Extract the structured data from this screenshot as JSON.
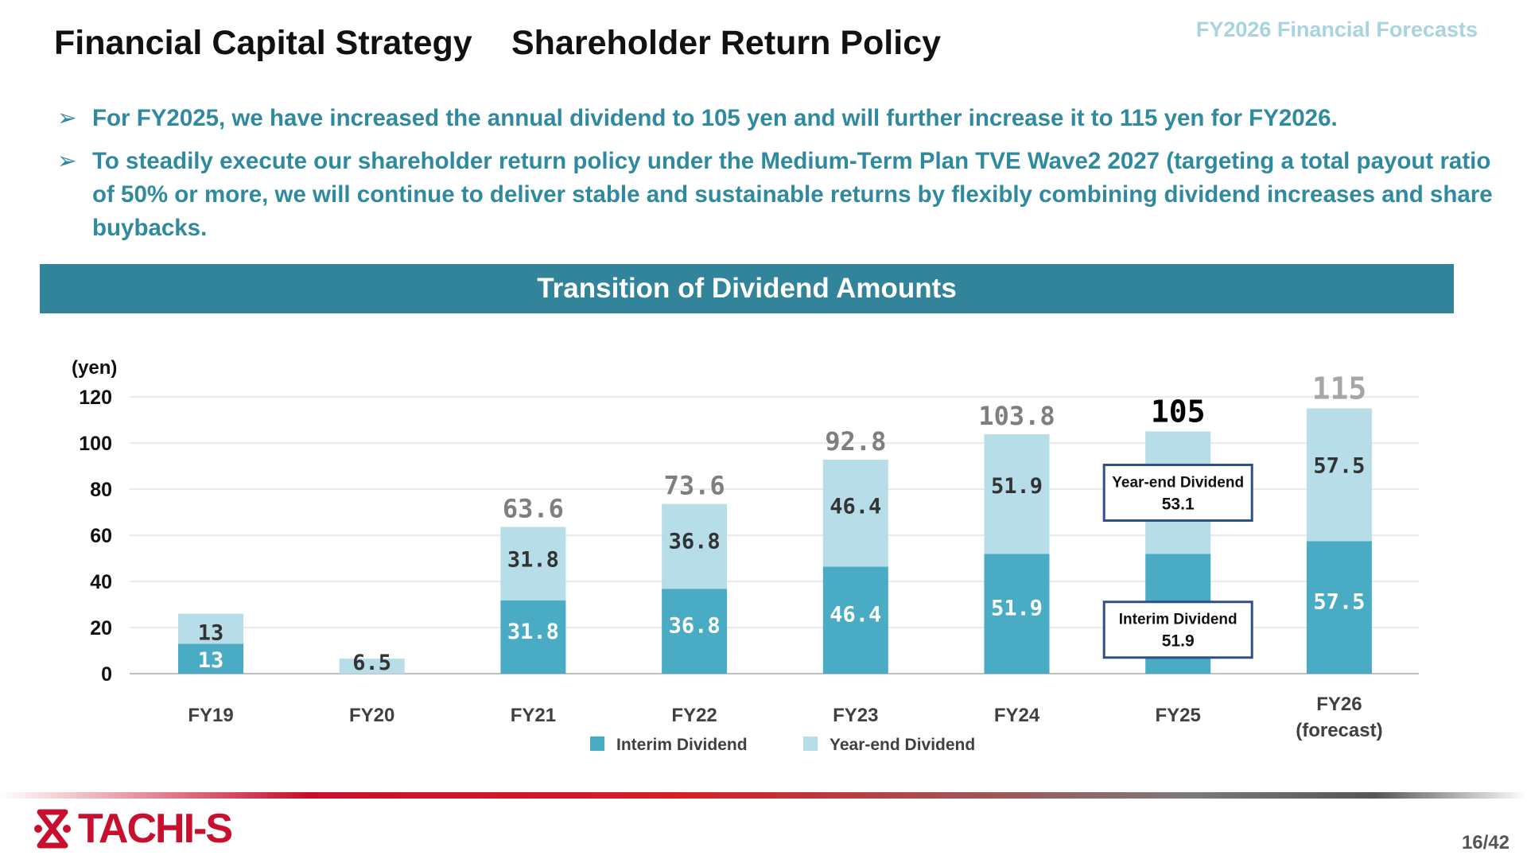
{
  "header": {
    "title": "Financial Capital Strategy",
    "subtitle": "Shareholder Return Policy",
    "corner_label": "FY2026 Financial Forecasts"
  },
  "bullets": [
    "For FY2025, we have increased the annual dividend to 105 yen and will further increase it to 115 yen for FY2026.",
    "To steadily execute our shareholder return policy under the Medium-Term Plan TVE Wave2 2027 (targeting a total payout ratio of 50% or more, we will continue to deliver stable and sustainable returns by flexibly combining dividend increases and share buybacks."
  ],
  "banner": {
    "title": "Transition of Dividend Amounts"
  },
  "chart_data": {
    "type": "bar",
    "stacked": true,
    "ylabel": "(yen)",
    "ylim": [
      0,
      120
    ],
    "yticks": [
      0,
      20,
      40,
      60,
      80,
      100,
      120
    ],
    "grid": true,
    "legend_position": "bottom",
    "categories": [
      "FY19",
      "FY20",
      "FY21",
      "FY22",
      "FY23",
      "FY24",
      "FY25",
      "FY26\n(forecast)"
    ],
    "series": [
      {
        "name": "Interim Dividend",
        "color": "#4aabc5",
        "values": [
          13,
          0,
          31.8,
          36.8,
          46.4,
          51.9,
          51.9,
          57.5
        ],
        "labels": [
          "13",
          "",
          "31.8",
          "36.8",
          "46.4",
          "51.9",
          "",
          "57.5"
        ]
      },
      {
        "name": "Year-end Dividend",
        "color": "#b6dde8",
        "values": [
          13,
          6.5,
          31.8,
          36.8,
          46.4,
          51.9,
          53.1,
          57.5
        ],
        "labels": [
          "13",
          "6.5",
          "31.8",
          "36.8",
          "46.4",
          "51.9",
          "",
          "57.5"
        ]
      }
    ],
    "totals": [
      "",
      "",
      "63.6",
      "73.6",
      "92.8",
      "103.8",
      "105",
      "115"
    ],
    "callouts": [
      {
        "category": "FY25",
        "series": "Year-end Dividend",
        "title": "Year-end Dividend",
        "value": "53.1"
      },
      {
        "category": "FY25",
        "series": "Interim Dividend",
        "title": "Interim Dividend",
        "value": "51.9"
      }
    ]
  },
  "footer": {
    "logo_text": "TACHI-S",
    "page": "16/42"
  }
}
